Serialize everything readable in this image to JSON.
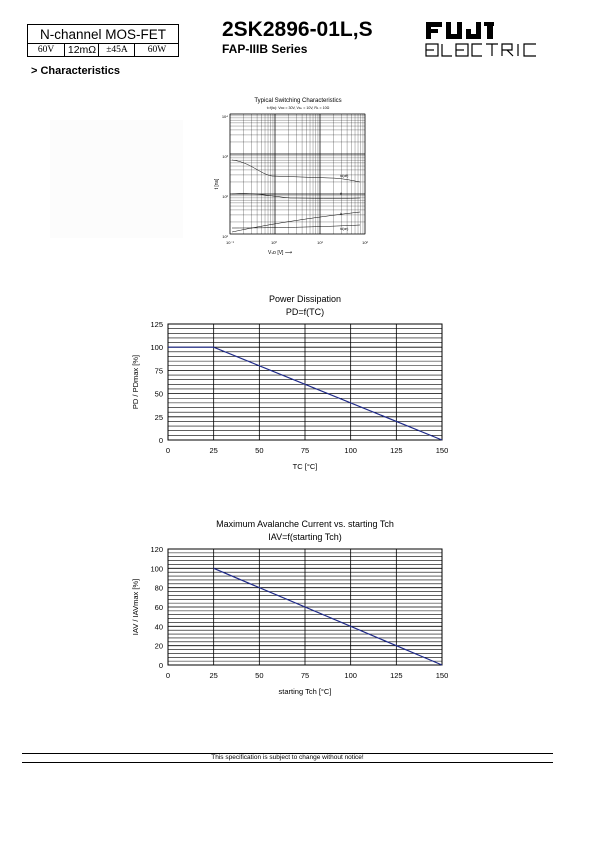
{
  "header": {
    "device_type": "N-channel MOS-FET",
    "specs": [
      "60V",
      "12mΩ",
      "±45A",
      "60W"
    ],
    "part_number": "2SK2896-01L,S",
    "series": "FAP-IIIB Series",
    "logo_text": "FUJI ELECTRIC"
  },
  "section_title": "> Characteristics",
  "switching_chart": {
    "title": "Typical Switching Characteristics",
    "subtitle": "t=f(Iᴅ): Vᴅᴄ = 30V, Vɢₛ = 10V, Rʟ = 10Ω",
    "ylabel": "t [ns]",
    "xlabel": "Vₛᴅ [V] ⟶",
    "y_ticks": [
      "10⁴",
      "10³",
      "10²",
      "10¹"
    ],
    "x_ticks": [
      "10⁻¹",
      "10⁰",
      "10¹",
      "10²"
    ],
    "curve_labels": [
      "td(off)",
      "tf",
      "tr",
      "td(on)"
    ]
  },
  "chart_data": [
    {
      "type": "line",
      "title": "Power Dissipation",
      "subtitle": "PD=f(TC)",
      "xlabel": "TC [°C]",
      "ylabel": "PD / PDmax [%]",
      "x": [
        0,
        25,
        150
      ],
      "series": [
        {
          "values": [
            100,
            100,
            0
          ]
        }
      ],
      "xlim": [
        0,
        150
      ],
      "ylim": [
        0,
        125
      ],
      "x_ticks": [
        0,
        25,
        50,
        75,
        100,
        125,
        150
      ],
      "y_ticks": [
        0,
        25,
        50,
        75,
        100,
        125
      ],
      "grid": true,
      "line_color": "#1f2a8a"
    },
    {
      "type": "line",
      "title": "Maximum Avalanche Current vs. starting Tch",
      "subtitle": "IAV=f(starting Tch)",
      "xlabel": "starting Tch [°C]",
      "ylabel": "IAV / IAVmax [%]",
      "x": [
        25,
        150
      ],
      "series": [
        {
          "values": [
            100,
            0
          ]
        }
      ],
      "xlim": [
        0,
        150
      ],
      "ylim": [
        0,
        120
      ],
      "x_ticks": [
        0,
        25,
        50,
        75,
        100,
        125,
        150
      ],
      "y_ticks": [
        0,
        20,
        40,
        60,
        80,
        100,
        120
      ],
      "grid": true,
      "line_color": "#1f2a8a"
    }
  ],
  "footer": {
    "notice": "This specification is subject to change without notice!"
  }
}
